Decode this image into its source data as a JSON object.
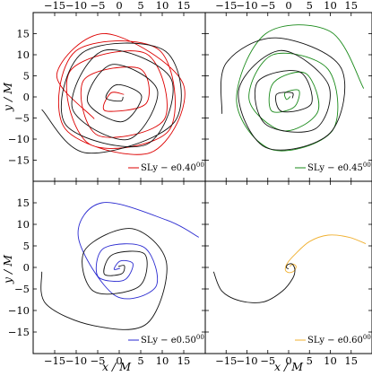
{
  "figure": {
    "xlabel": "x / M",
    "ylabel": "y / M"
  },
  "chart_data": [
    {
      "type": "line",
      "panel": "top-left",
      "xlim": [
        -20,
        20
      ],
      "ylim": [
        -20,
        20
      ],
      "xticks": [
        -15,
        -10,
        -5,
        0,
        5,
        10,
        15
      ],
      "yticks": [
        -15,
        -10,
        -5,
        0,
        5,
        10,
        15
      ],
      "xtick_position": "top",
      "legend": {
        "label": "SLy − e0.40",
        "superscript": "00",
        "placement": "lower-right"
      },
      "series": [
        {
          "name": "",
          "role": "star-1",
          "color": "#dd0000",
          "x": [
            -5.8,
            -14.5,
            -3.0,
            14.9,
            7.3,
            -12.6,
            -10.2,
            9.3,
            11.6,
            -6.9,
            -11.5,
            6.2,
            10.5,
            -5.0,
            -8.3,
            4.6,
            6.3,
            -3.2,
            -2.0,
            1.1
          ],
          "y": [
            -5.2,
            5.4,
            15.0,
            3.0,
            -13.2,
            -7.5,
            10.8,
            11.1,
            -7.9,
            -11.2,
            6.0,
            10.3,
            -5.3,
            -9.1,
            3.9,
            6.8,
            -1.5,
            -3.3,
            0.9,
            0.6
          ]
        },
        {
          "name": "",
          "role": "star-2",
          "color": "#111111",
          "x": [
            -18.0,
            -7.5,
            12.8,
            10.8,
            -8.5,
            -12.5,
            6.3,
            12.1,
            -3.6,
            -10.9,
            2.0,
            8.9,
            -1.6,
            -7.4,
            0.5,
            5.2,
            -0.4,
            -3.1,
            0.3,
            0.9
          ],
          "y": [
            -3.0,
            -13.3,
            -6.0,
            10.8,
            10.5,
            -6.5,
            -11.3,
            4.2,
            11.0,
            -2.7,
            -10.1,
            1.5,
            7.7,
            -0.9,
            -5.9,
            0.1,
            2.9,
            -0.2,
            -1.0,
            0.0
          ]
        }
      ]
    },
    {
      "type": "line",
      "panel": "top-right",
      "xlim": [
        -20,
        20
      ],
      "ylim": [
        -20,
        20
      ],
      "xticks": [
        -15,
        -10,
        -5,
        0,
        5,
        10,
        15
      ],
      "yticks": [
        -15,
        -10,
        -5,
        0,
        5,
        10,
        15
      ],
      "xtick_position": "top",
      "legend": {
        "label": "SLy − e0.45",
        "superscript": "00",
        "placement": "lower-right"
      },
      "series": [
        {
          "name": "",
          "role": "star-1",
          "color": "#1a8a1a",
          "x": [
            18.0,
            10.0,
            -5.5,
            -12.5,
            -4.0,
            10.5,
            9.5,
            -3.8,
            -9.5,
            -1.5,
            7.0,
            4.2,
            -3.5,
            -4.2,
            1.2,
            2.5,
            -0.8,
            -0.5,
            0.4
          ],
          "y": [
            2.0,
            15.5,
            15.0,
            -1.0,
            -12.5,
            -8.0,
            6.5,
            10.0,
            -0.5,
            -8.0,
            -3.5,
            5.5,
            3.5,
            -3.2,
            -2.5,
            1.5,
            1.0,
            -0.6,
            0.1
          ]
        },
        {
          "name": "",
          "role": "star-2",
          "color": "#111111",
          "x": [
            -16.0,
            -15.0,
            -3.0,
            12.5,
            10.0,
            -5.5,
            -12.0,
            -2.0,
            9.5,
            6.5,
            -5.5,
            -7.5,
            2.5,
            5.5,
            -1.5,
            -3.0,
            0.8,
            0.9
          ],
          "y": [
            -4.0,
            8.0,
            14.0,
            7.0,
            -8.5,
            -12.0,
            1.5,
            11.0,
            3.0,
            -7.5,
            -6.5,
            3.5,
            6.0,
            -1.5,
            -3.5,
            0.5,
            1.0,
            -0.3
          ]
        }
      ]
    },
    {
      "type": "line",
      "panel": "bottom-left",
      "xlim": [
        -20,
        20
      ],
      "ylim": [
        -20,
        20
      ],
      "xticks": [
        -15,
        -10,
        -5,
        0,
        5,
        10,
        15
      ],
      "yticks": [
        -15,
        -10,
        -5,
        0,
        5,
        10,
        15
      ],
      "xtick_position": "bottom",
      "legend": {
        "label": "SLy − e0.50",
        "superscript": "00",
        "placement": "lower-right"
      },
      "series": [
        {
          "name": "",
          "role": "star-1",
          "color": "#2a2ad0",
          "x": [
            18.5,
            11.0,
            -4.0,
            -9.5,
            -1.0,
            8.5,
            6.0,
            -3.5,
            -5.0,
            1.0,
            3.2,
            0.3,
            -1.2,
            0.2
          ],
          "y": [
            7.0,
            11.0,
            15.0,
            7.0,
            -6.5,
            -4.5,
            4.5,
            4.5,
            -2.0,
            -3.0,
            0.8,
            1.5,
            -0.4,
            -0.2
          ]
        },
        {
          "name": "",
          "role": "star-2",
          "color": "#111111",
          "x": [
            -18.0,
            -17.0,
            -6.0,
            6.5,
            11.0,
            3.0,
            -8.0,
            -6.0,
            4.5,
            6.0,
            -1.5,
            -3.5,
            0.5,
            1.2,
            -0.2
          ],
          "y": [
            -1.0,
            -8.5,
            -13.5,
            -13.0,
            1.0,
            9.0,
            4.0,
            -5.5,
            -4.5,
            3.0,
            3.0,
            -1.5,
            -1.5,
            0.4,
            0.2
          ]
        }
      ]
    },
    {
      "type": "line",
      "panel": "bottom-right",
      "xlim": [
        -20,
        20
      ],
      "ylim": [
        -20,
        20
      ],
      "xticks": [
        -15,
        -10,
        -5,
        0,
        5,
        10,
        15
      ],
      "yticks": [
        -15,
        -10,
        -5,
        0,
        5,
        10,
        15
      ],
      "xtick_position": "bottom",
      "legend": {
        "label": "SLy − e0.60",
        "superscript": "00",
        "placement": "lower-right"
      },
      "series": [
        {
          "name": "",
          "role": "star-1",
          "color": "#f0b030",
          "x": [
            18.5,
            14.5,
            9.5,
            5.0,
            1.5,
            -0.3,
            -0.8,
            0.0,
            1.2,
            1.8,
            1.0,
            0.3
          ],
          "y": [
            5.5,
            7.0,
            7.5,
            6.0,
            3.0,
            1.0,
            -0.5,
            -1.2,
            -0.9,
            0.2,
            0.8,
            0.2
          ]
        },
        {
          "name": "",
          "role": "star-2",
          "color": "#111111",
          "x": [
            -18.0,
            -16.0,
            -11.5,
            -6.0,
            -1.5,
            1.0,
            1.5,
            0.8,
            -0.3,
            -0.5,
            0.0
          ],
          "y": [
            -1.0,
            -5.5,
            -7.8,
            -8.0,
            -5.5,
            -2.5,
            -0.5,
            0.8,
            0.6,
            -0.1,
            -0.3
          ]
        }
      ]
    }
  ]
}
